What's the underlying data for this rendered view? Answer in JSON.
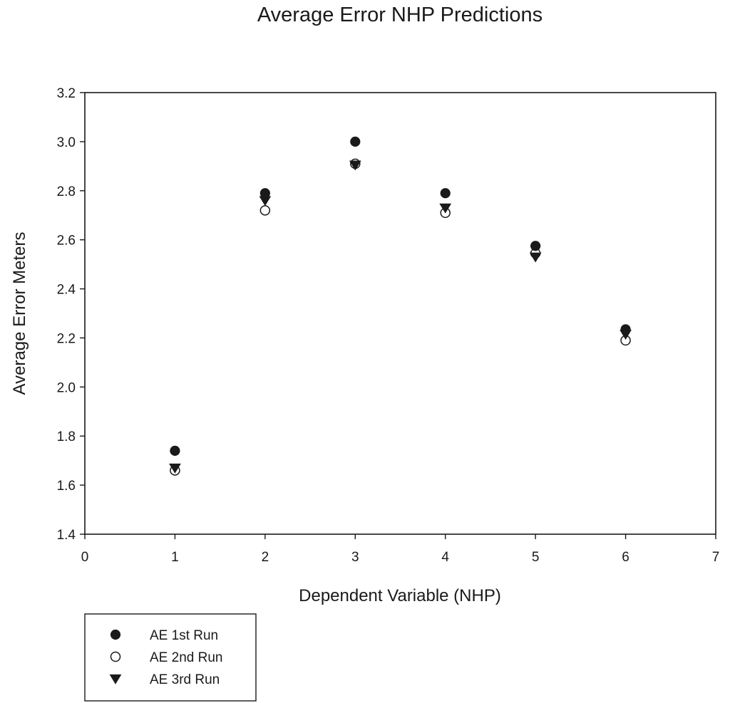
{
  "chart_data": {
    "type": "scatter",
    "title": "Average Error NHP Predictions",
    "xlabel": "Dependent Variable (NHP)",
    "ylabel": "Average Error Meters",
    "xlim": [
      0,
      7
    ],
    "ylim": [
      1.4,
      3.2
    ],
    "x_ticks": [
      "0",
      "1",
      "2",
      "3",
      "4",
      "5",
      "6",
      "7"
    ],
    "y_ticks": [
      "1.4",
      "1.6",
      "1.8",
      "2.0",
      "2.2",
      "2.4",
      "2.6",
      "2.8",
      "3.0",
      "3.2"
    ],
    "grid": false,
    "legend_position": "bottom-left, below plot",
    "x": [
      1,
      2,
      3,
      4,
      5,
      6
    ],
    "series": [
      {
        "name": "AE 1st Run",
        "marker": "filled-circle",
        "color": "#1a1a1a",
        "values": [
          1.74,
          2.79,
          3.0,
          2.79,
          2.575,
          2.235
        ]
      },
      {
        "name": "AE 2nd Run",
        "marker": "open-circle",
        "color": "#1a1a1a",
        "values": [
          1.66,
          2.72,
          2.91,
          2.71,
          2.545,
          2.19
        ]
      },
      {
        "name": "AE 3rd Run",
        "marker": "filled-triangle-down",
        "color": "#1a1a1a",
        "values": [
          1.67,
          2.76,
          2.905,
          2.73,
          2.53,
          2.215
        ]
      }
    ]
  }
}
